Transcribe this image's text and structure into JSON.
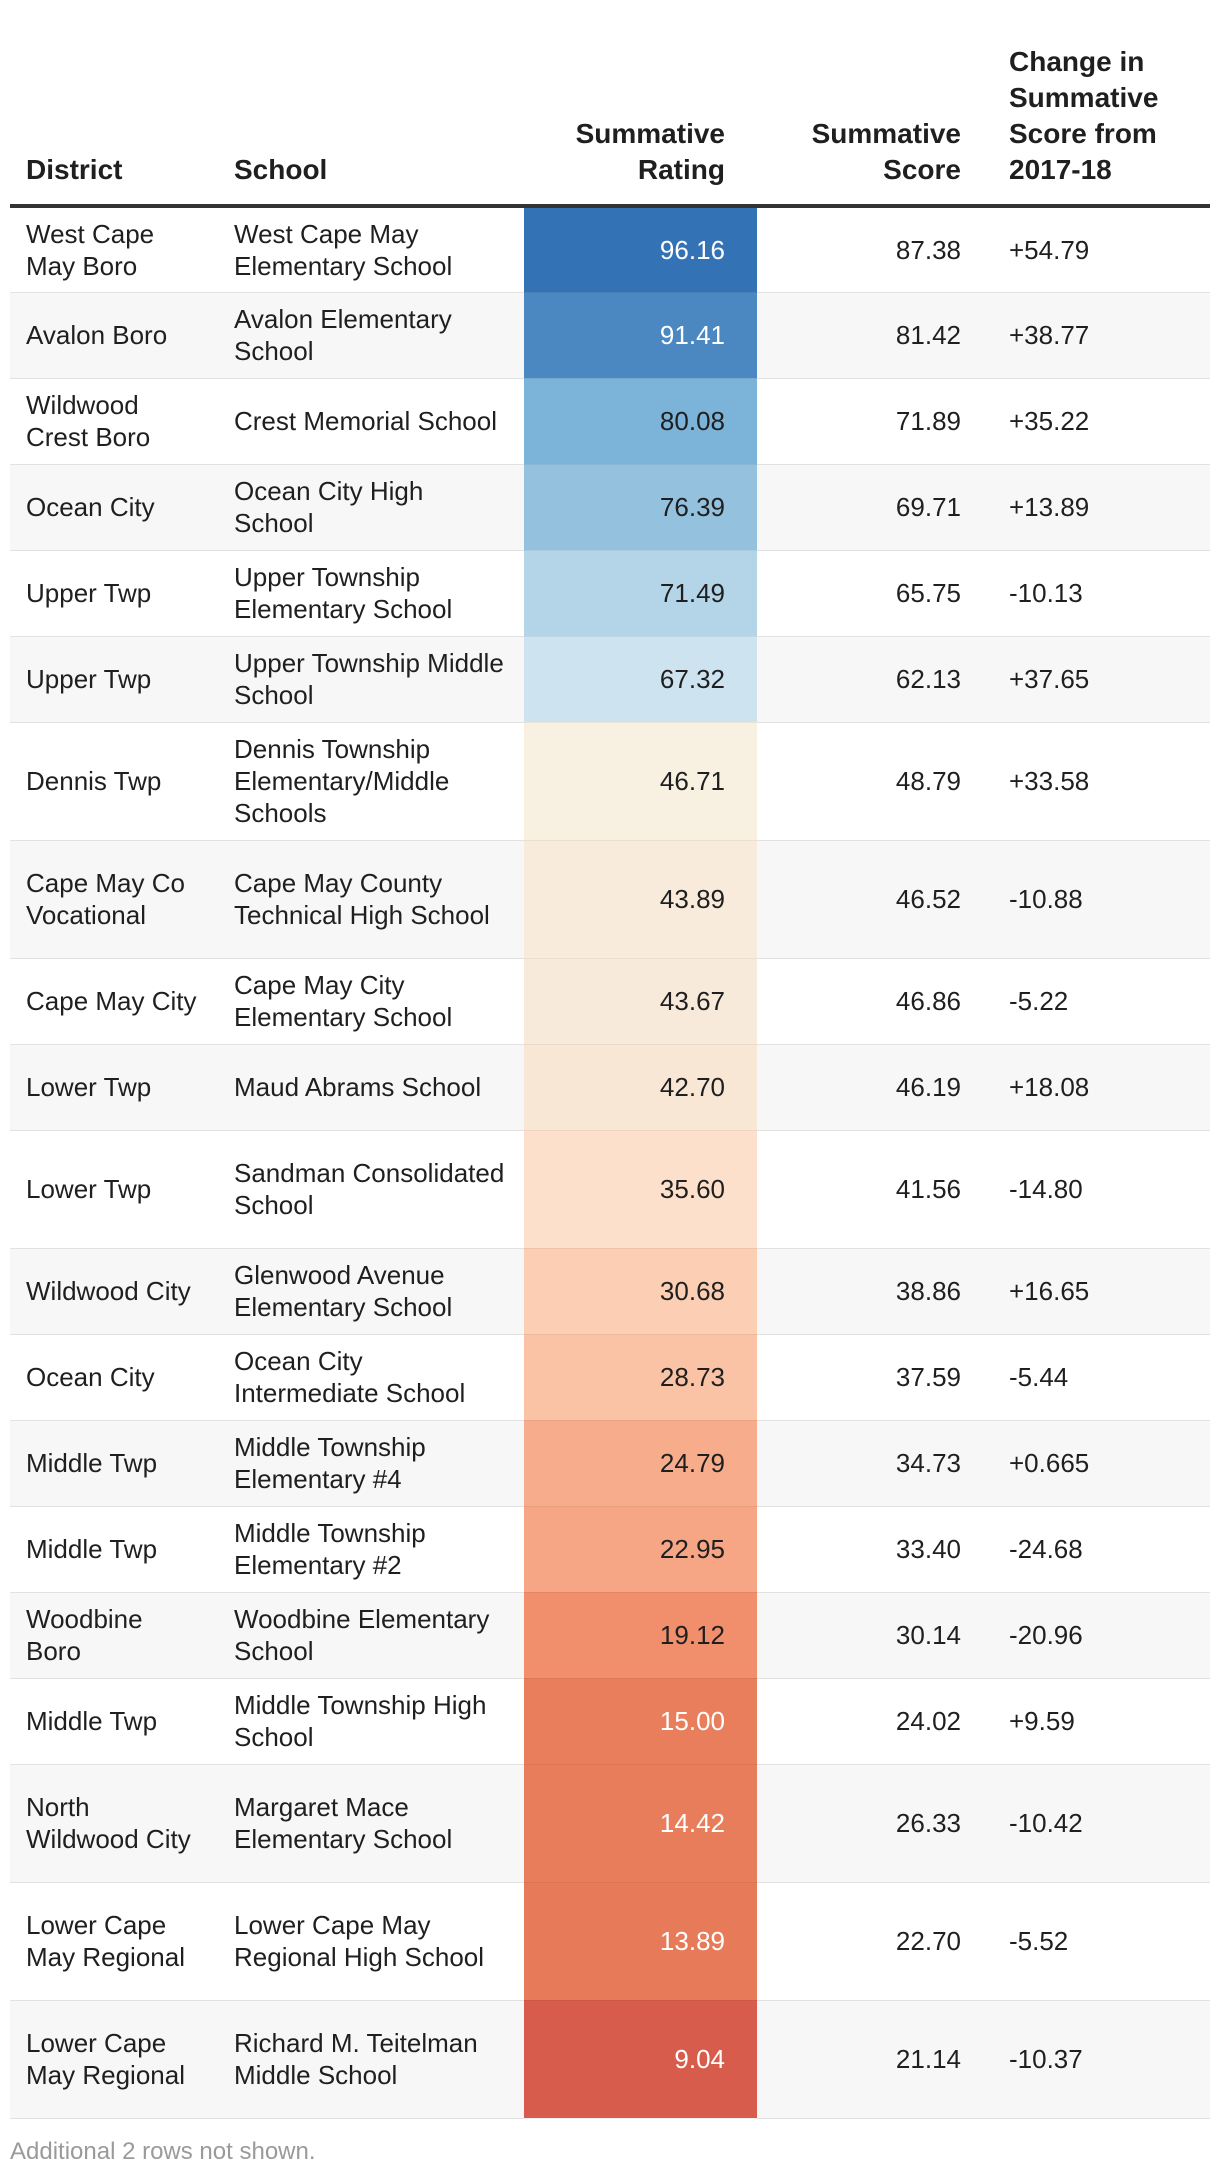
{
  "chart_data": {
    "type": "table",
    "columns": [
      "District",
      "School",
      "Summative Rating",
      "Summative Score",
      "Change in Summative Score from 2017-18"
    ],
    "rows": [
      {
        "district": "West Cape May Boro",
        "school": "West Cape May Elementary School",
        "rating": "96.16",
        "rating_color": "#3472b6",
        "rating_text_color": "#ffffff",
        "score": "87.38",
        "change": "+54.79"
      },
      {
        "district": "Avalon Boro",
        "school": "Avalon Elementary School",
        "rating": "91.41",
        "rating_color": "#4b87c1",
        "rating_text_color": "#ffffff",
        "score": "81.42",
        "change": "+38.77"
      },
      {
        "district": "Wildwood Crest Boro",
        "school": "Crest Memorial School",
        "rating": "80.08",
        "rating_color": "#7cb3d8",
        "rating_text_color": "#1f1f1f",
        "score": "71.89",
        "change": "+35.22"
      },
      {
        "district": "Ocean City",
        "school": "Ocean City High School",
        "rating": "76.39",
        "rating_color": "#93c1de",
        "rating_text_color": "#1f1f1f",
        "score": "69.71",
        "change": "+13.89"
      },
      {
        "district": "Upper Twp",
        "school": "Upper Township Elementary School",
        "rating": "71.49",
        "rating_color": "#b4d4e8",
        "rating_text_color": "#1f1f1f",
        "score": "65.75",
        "change": "-10.13"
      },
      {
        "district": "Upper Twp",
        "school": "Upper Township Middle School",
        "rating": "67.32",
        "rating_color": "#cde3f0",
        "rating_text_color": "#1f1f1f",
        "score": "62.13",
        "change": "+37.65"
      },
      {
        "district": "Dennis Twp",
        "school": "Dennis Township Elementary/Middle Schools",
        "rating": "46.71",
        "rating_color": "#f8f0e1",
        "rating_text_color": "#1f1f1f",
        "score": "48.79",
        "change": "+33.58"
      },
      {
        "district": "Cape May Co Vocational",
        "school": "Cape May County Technical High School",
        "rating": "43.89",
        "rating_color": "#f8ebdb",
        "rating_text_color": "#1f1f1f",
        "score": "46.52",
        "change": "-10.88"
      },
      {
        "district": "Cape May City",
        "school": "Cape May City Elementary School",
        "rating": "43.67",
        "rating_color": "#f8eadb",
        "rating_text_color": "#1f1f1f",
        "score": "46.86",
        "change": "-5.22"
      },
      {
        "district": "Lower Twp",
        "school": "Maud Abrams School",
        "rating": "42.70",
        "rating_color": "#f9e7d6",
        "rating_text_color": "#1f1f1f",
        "score": "46.19",
        "change": "+18.08"
      },
      {
        "district": "Lower Twp",
        "school": "Sandman Consolidated School",
        "rating": "35.60",
        "rating_color": "#fde0cc",
        "rating_text_color": "#1f1f1f",
        "score": "41.56",
        "change": "-14.80"
      },
      {
        "district": "Wildwood City",
        "school": "Glenwood Avenue Elementary School",
        "rating": "30.68",
        "rating_color": "#fcceb4",
        "rating_text_color": "#1f1f1f",
        "score": "38.86",
        "change": "+16.65"
      },
      {
        "district": "Ocean City",
        "school": "Ocean City Intermediate School",
        "rating": "28.73",
        "rating_color": "#fac3a6",
        "rating_text_color": "#1f1f1f",
        "score": "37.59",
        "change": "-5.44"
      },
      {
        "district": "Middle Twp",
        "school": "Middle Township Elementary #4",
        "rating": "24.79",
        "rating_color": "#f7ad8c",
        "rating_text_color": "#1f1f1f",
        "score": "34.73",
        "change": "+0.665"
      },
      {
        "district": "Middle Twp",
        "school": "Middle Township Elementary #2",
        "rating": "22.95",
        "rating_color": "#f6a585",
        "rating_text_color": "#1f1f1f",
        "score": "33.40",
        "change": "-24.68"
      },
      {
        "district": "Woodbine Boro",
        "school": "Woodbine Elementary School",
        "rating": "19.12",
        "rating_color": "#f18e6c",
        "rating_text_color": "#1f1f1f",
        "score": "30.14",
        "change": "-20.96"
      },
      {
        "district": "Middle Twp",
        "school": "Middle Township High School",
        "rating": "15.00",
        "rating_color": "#e97e5d",
        "rating_text_color": "#ffffff",
        "score": "24.02",
        "change": "+9.59"
      },
      {
        "district": "North Wildwood City",
        "school": "Margaret Mace Elementary School",
        "rating": "14.42",
        "rating_color": "#e87d5b",
        "rating_text_color": "#ffffff",
        "score": "26.33",
        "change": "-10.42"
      },
      {
        "district": "Lower Cape May Regional",
        "school": "Lower Cape May Regional High School",
        "rating": "13.89",
        "rating_color": "#e77b59",
        "rating_text_color": "#ffffff",
        "score": "22.70",
        "change": "-5.52"
      },
      {
        "district": "Lower Cape May Regional",
        "school": "Richard M. Teitelman Middle School",
        "rating": "9.04",
        "rating_color": "#d75c4b",
        "rating_text_color": "#ffffff",
        "score": "21.14",
        "change": "-10.37"
      }
    ],
    "footnote": "Additional 2 rows not shown."
  }
}
